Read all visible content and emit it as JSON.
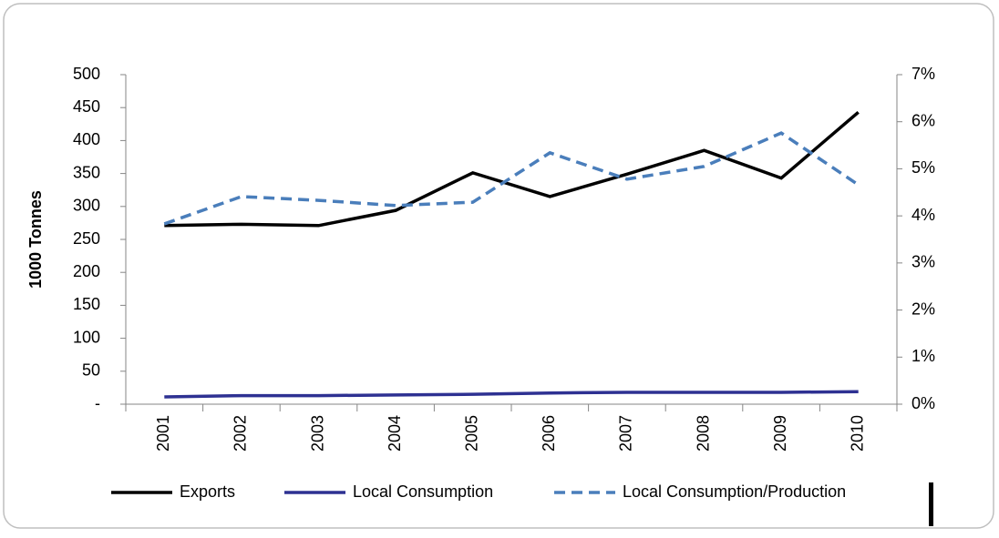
{
  "chart_data": {
    "type": "line",
    "y_label": "1000 Tonnes",
    "categories": [
      "2001",
      "2002",
      "2003",
      "2004",
      "2005",
      "2006",
      "2007",
      "2008",
      "2009",
      "2010"
    ],
    "series": [
      {
        "name": "Exports",
        "color": "#000000",
        "dash": false,
        "values": [
          271,
          273,
          271,
          294,
          351,
          315,
          349,
          385,
          343,
          443
        ]
      },
      {
        "name": "Local Consumption",
        "color": "#2e3192",
        "dash": false,
        "values": [
          11,
          13,
          13,
          14,
          15,
          17,
          18,
          18,
          18,
          19
        ]
      },
      {
        "name": "Local Consumption/Production",
        "color": "#4a7ebb",
        "dash": true,
        "axis": "y2",
        "values": [
          3.83,
          4.41,
          4.33,
          4.22,
          4.29,
          5.34,
          4.78,
          5.05,
          5.76,
          4.66
        ]
      }
    ],
    "ylim": [
      0,
      500
    ],
    "yticks": [
      {
        "value": 0,
        "label": "-"
      },
      50,
      100,
      150,
      200,
      250,
      300,
      350,
      400,
      450,
      500
    ],
    "y2lim": [
      0,
      7
    ],
    "y2ticks": [
      {
        "value": 0,
        "label": "0%"
      },
      {
        "value": 1,
        "label": "1%"
      },
      {
        "value": 2,
        "label": "2%"
      },
      {
        "value": 3,
        "label": "3%"
      },
      {
        "value": 4,
        "label": "4%"
      },
      {
        "value": 5,
        "label": "5%"
      },
      {
        "value": 6,
        "label": "6%"
      },
      {
        "value": 7,
        "label": "7%"
      }
    ],
    "legend": "bottom"
  }
}
